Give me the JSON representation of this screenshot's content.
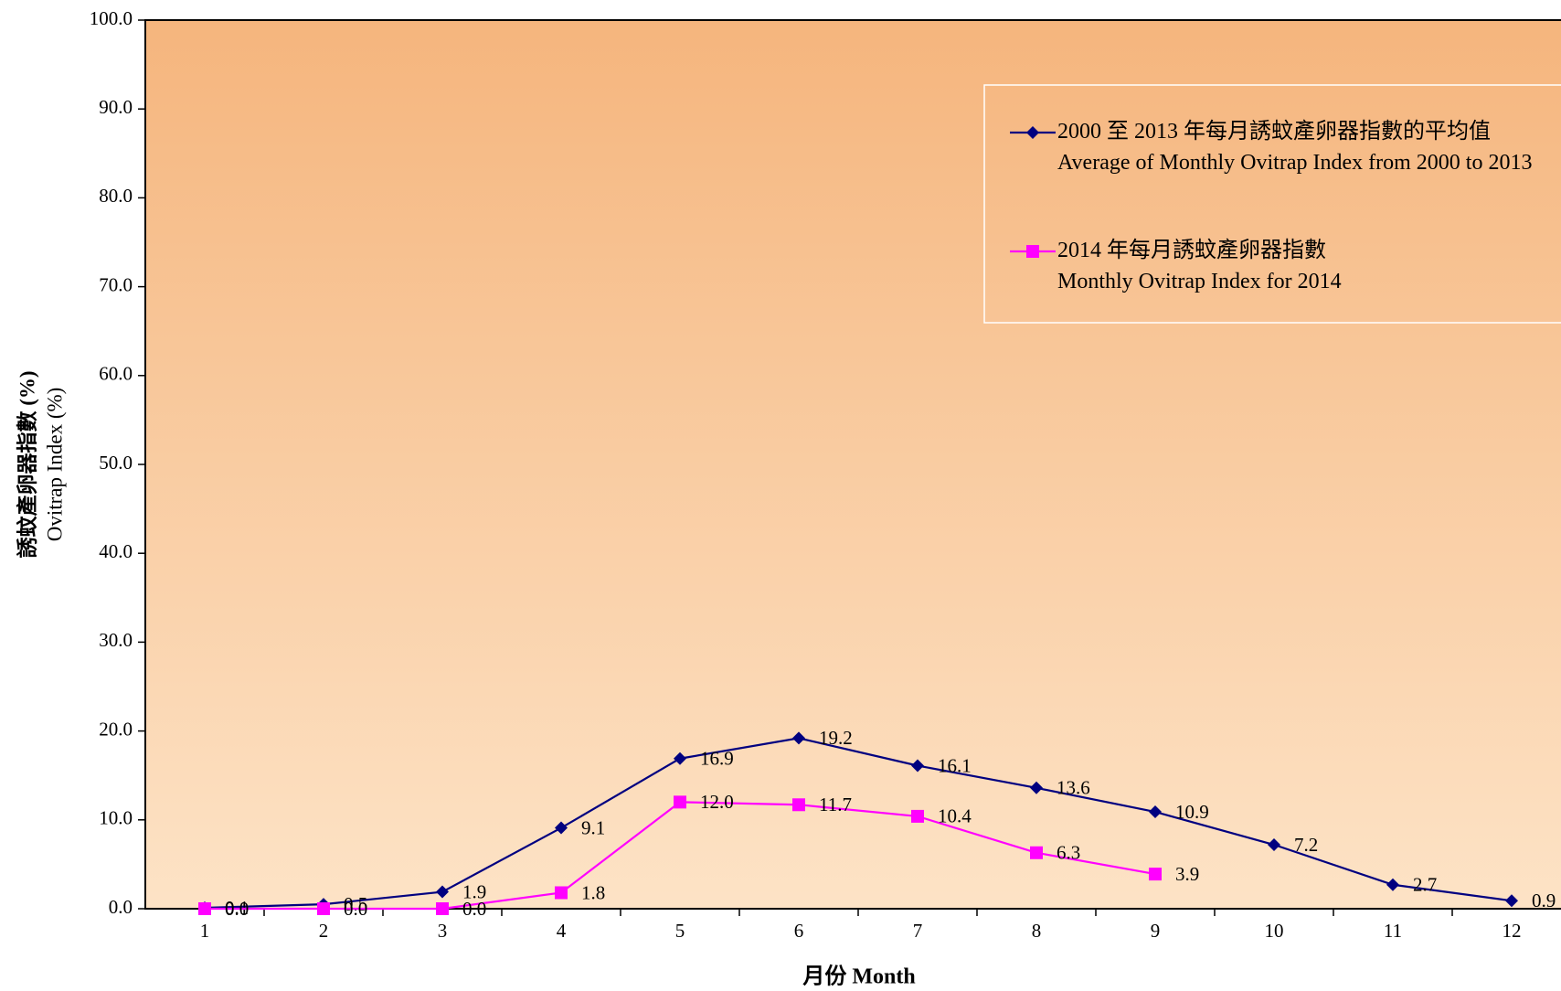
{
  "chart_data": {
    "type": "line",
    "x_label": "月份 Month",
    "y_label_lines": [
      "誘蚊產卵器指數 (%)",
      "Ovitrap Index (%)"
    ],
    "categories": [
      "1",
      "2",
      "3",
      "4",
      "5",
      "6",
      "7",
      "8",
      "9",
      "10",
      "11",
      "12"
    ],
    "series": [
      {
        "name": "2000 至 2013 年每月誘蚊產卵器指數的平均值\nAverage of Monthly Ovitrap Index from 2000 to 2013",
        "color": "#000080",
        "marker": "diamond",
        "values": [
          0.1,
          0.5,
          1.9,
          9.1,
          16.9,
          19.2,
          16.1,
          13.6,
          10.9,
          7.2,
          2.7,
          0.9
        ],
        "value_labels": [
          "0.1",
          "0.5",
          "1.9",
          "9.1",
          "16.9",
          "19.2",
          "16.1",
          "13.6",
          "10.9",
          "7.2",
          "2.7",
          "0.9"
        ]
      },
      {
        "name": "2014 年每月誘蚊產卵器指數\nMonthly Ovitrap Index for 2014",
        "color": "#ff00ff",
        "marker": "square",
        "values": [
          0,
          0,
          0,
          1.8,
          12,
          11.7,
          10.4,
          6.3,
          3.9,
          null,
          null,
          null
        ],
        "value_labels": [
          "0.0",
          "0.0",
          "0.0",
          "1.8",
          "12.0",
          "11.7",
          "10.4",
          "6.3",
          "3.9",
          null,
          null,
          null
        ]
      }
    ],
    "ylim": [
      0,
      100
    ],
    "yticks": [
      {
        "value": 0,
        "label": "0.0"
      },
      {
        "value": 10,
        "label": "10.0"
      },
      {
        "value": 20,
        "label": "20.0"
      },
      {
        "value": 30,
        "label": "30.0"
      },
      {
        "value": 40,
        "label": "40.0"
      },
      {
        "value": 50,
        "label": "50.0"
      },
      {
        "value": 60,
        "label": "60.0"
      },
      {
        "value": 70,
        "label": "70.0"
      },
      {
        "value": 80,
        "label": "80.0"
      },
      {
        "value": 90,
        "label": "90.0"
      },
      {
        "value": 100,
        "label": "100.0"
      }
    ]
  }
}
